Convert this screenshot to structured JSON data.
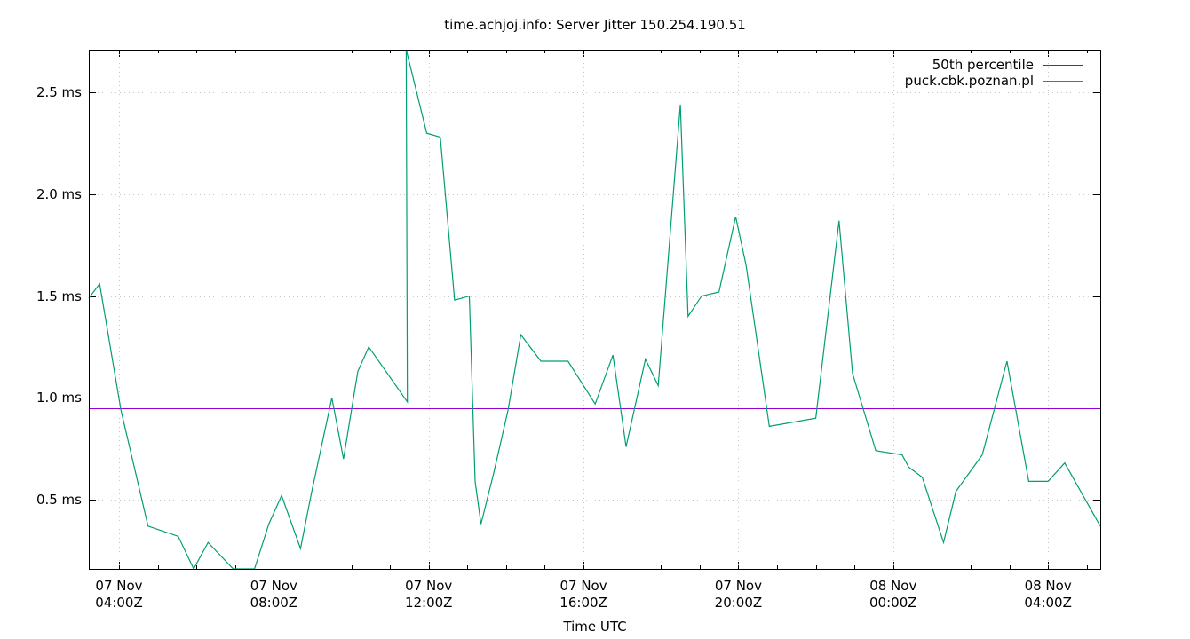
{
  "chart_data": {
    "type": "line",
    "title": "time.achjoj.info: Server Jitter 150.254.190.51",
    "xlabel": "Time UTC",
    "ylabel": "",
    "ylim": [
      0.16,
      2.71
    ],
    "yticks": [
      {
        "value": 0.5,
        "label": "0.5 ms"
      },
      {
        "value": 1.0,
        "label": "1.0 ms"
      },
      {
        "value": 1.5,
        "label": "1.5 ms"
      },
      {
        "value": 2.0,
        "label": "2.0 ms"
      },
      {
        "value": 2.5,
        "label": "2.5 ms"
      }
    ],
    "xticks": [
      {
        "hours": 4,
        "line1": "07 Nov",
        "line2": "04:00Z"
      },
      {
        "hours": 8,
        "line1": "07 Nov",
        "line2": "08:00Z"
      },
      {
        "hours": 12,
        "line1": "07 Nov",
        "line2": "12:00Z"
      },
      {
        "hours": 16,
        "line1": "07 Nov",
        "line2": "16:00Z"
      },
      {
        "hours": 20,
        "line1": "07 Nov",
        "line2": "20:00Z"
      },
      {
        "hours": 24,
        "line1": "08 Nov",
        "line2": "00:00Z"
      },
      {
        "hours": 28,
        "line1": "08 Nov",
        "line2": "04:00Z"
      }
    ],
    "xrange_hours": [
      3.22,
      29.35
    ],
    "grid": true,
    "legend_position": "top-right",
    "series": [
      {
        "name": "50th percentile",
        "color": "#9400d3",
        "type": "hline",
        "value": 0.947
      },
      {
        "name": "puck.cbk.poznan.pl",
        "color": "#009e73",
        "x_hours": [
          3.22,
          3.5,
          4.05,
          4.75,
          5.53,
          5.93,
          6.3,
          6.95,
          7.5,
          7.87,
          8.2,
          8.69,
          8.97,
          9.5,
          9.8,
          10.17,
          10.45,
          11.45,
          11.42,
          11.95,
          12.3,
          12.67,
          13.05,
          13.2,
          13.35,
          13.68,
          14.05,
          14.38,
          14.9,
          15.6,
          16.3,
          16.76,
          17.1,
          17.6,
          17.93,
          18.5,
          18.7,
          19.05,
          19.5,
          19.93,
          20.2,
          20.8,
          22.0,
          22.6,
          22.95,
          23.55,
          24.23,
          24.4,
          24.75,
          25.3,
          25.62,
          26.3,
          26.94,
          27.5,
          28.0,
          28.43,
          29.35
        ],
        "values": [
          1.49,
          1.56,
          0.94,
          0.37,
          0.32,
          0.16,
          0.29,
          0.16,
          0.15,
          0.38,
          0.52,
          0.26,
          0.53,
          1.0,
          0.7,
          1.13,
          1.25,
          0.98,
          2.71,
          2.3,
          2.28,
          1.48,
          1.5,
          0.59,
          0.38,
          0.63,
          0.94,
          1.31,
          1.18,
          1.18,
          0.97,
          1.21,
          0.76,
          1.19,
          1.06,
          2.44,
          1.4,
          1.5,
          1.52,
          1.89,
          1.65,
          0.86,
          0.9,
          1.87,
          1.12,
          0.74,
          0.72,
          0.66,
          0.61,
          0.29,
          0.54,
          0.72,
          1.18,
          0.59,
          0.59,
          0.68,
          0.37
        ]
      }
    ]
  },
  "legend": {
    "items": [
      {
        "label": "50th percentile",
        "color": "#9400d3"
      },
      {
        "label": "puck.cbk.poznan.pl",
        "color": "#009e73"
      }
    ]
  }
}
